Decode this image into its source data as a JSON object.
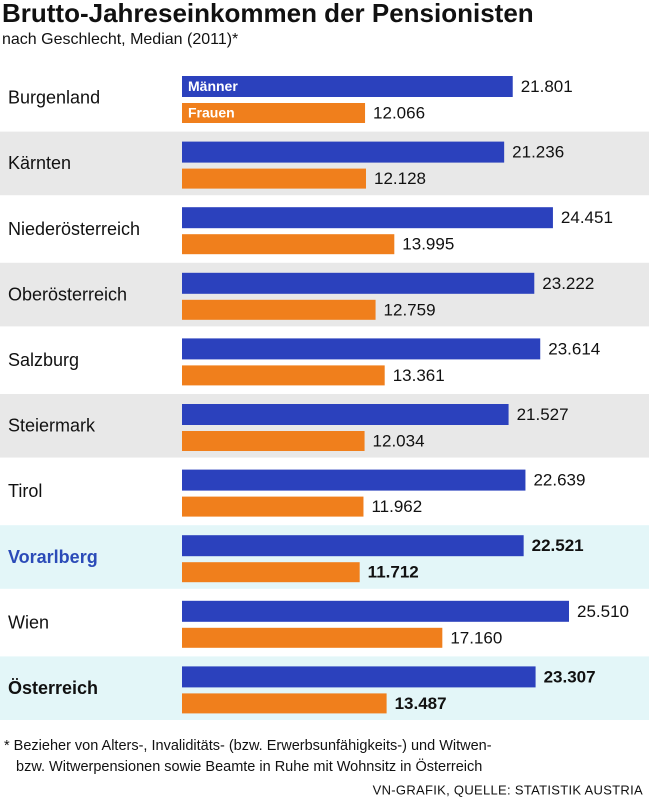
{
  "chart_data": {
    "type": "bar",
    "orientation": "horizontal",
    "title": "Brutto-Jahreseinkommen der Pensionisten",
    "subtitle": "nach Geschlecht, Median (2011)*",
    "categories": [
      "Burgenland",
      "Kärnten",
      "Niederösterreich",
      "Oberösterreich",
      "Salzburg",
      "Steiermark",
      "Tirol",
      "Vorarlberg",
      "Wien",
      "Österreich"
    ],
    "series": [
      {
        "name": "Männer",
        "color": "#2b41bd",
        "values": [
          21801,
          21236,
          24451,
          23222,
          23614,
          21527,
          22639,
          22521,
          25510,
          23307
        ],
        "value_labels": [
          "21.801",
          "21.236",
          "24.451",
          "23.222",
          "23.614",
          "21.527",
          "22.639",
          "22.521",
          "25.510",
          "23.307"
        ]
      },
      {
        "name": "Frauen",
        "color": "#f07f1c",
        "values": [
          12066,
          12128,
          13995,
          12759,
          13361,
          12034,
          11962,
          11712,
          17160,
          13487
        ],
        "value_labels": [
          "12.066",
          "12.128",
          "13.995",
          "12.759",
          "13.361",
          "12.034",
          "11.962",
          "11.712",
          "17.160",
          "13.487"
        ]
      }
    ],
    "highlighted": [
      7,
      9
    ],
    "highlight_label_colors": [
      "#2b4bb8",
      "#111111"
    ],
    "footnote": [
      "* Bezieher von Alters-, Invaliditäts- (bzw. Erwerbsunfähigkeits-) und Witwen-",
      "bzw. Witwerpensionen sowie Beamte in Ruhe mit Wohnsitz in Österreich"
    ],
    "source": "VN-GRAFIK, QUELLE: STATISTIK AUSTRIA"
  }
}
